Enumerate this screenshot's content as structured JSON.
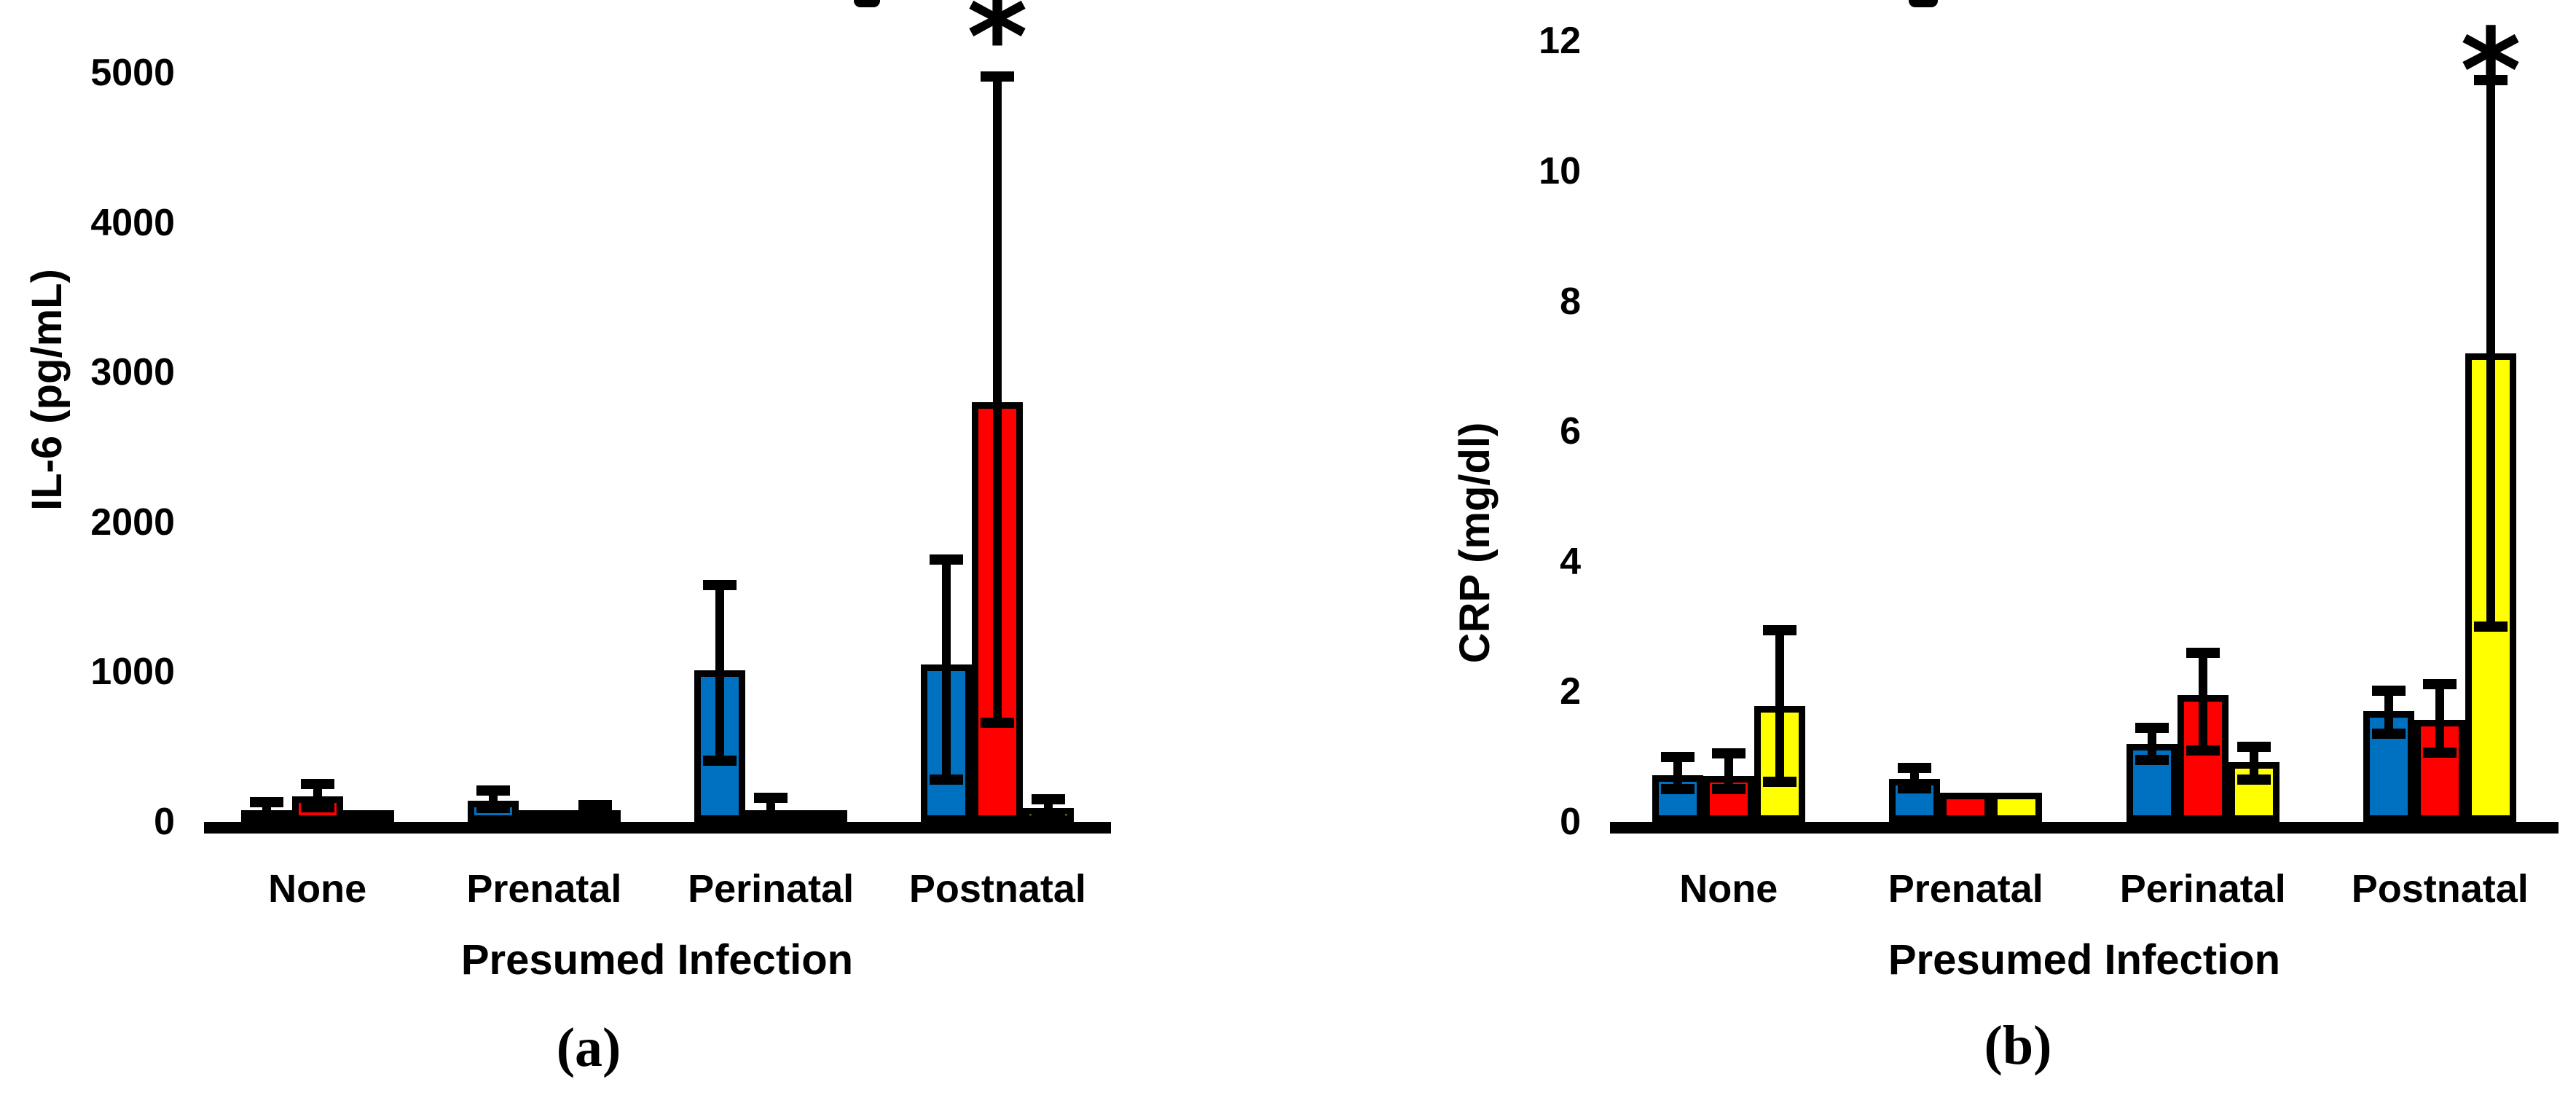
{
  "figure": {
    "panels": [
      {
        "panel_label": "(a)"
      },
      {
        "panel_label": "(b)"
      }
    ]
  },
  "colors": {
    "series_blue": "#0070C0",
    "series_red": "#FF0000",
    "series_yellow": "#FFFF00",
    "outline": "#000000"
  },
  "chart_data": [
    {
      "type": "bar",
      "panel_label": "(a)",
      "xlabel": "Presumed Infection",
      "ylabel": "IL-6 (pg/mL)",
      "categories": [
        "None",
        "Prenatal",
        "Perinatal",
        "Postnatal"
      ],
      "ylim": [
        0,
        5000
      ],
      "yticks": [
        0,
        1000,
        2000,
        3000,
        4000,
        5000
      ],
      "grid": false,
      "legend_position": "none-visible",
      "series": [
        {
          "name": "blue",
          "color": "#0070C0",
          "values": [
            60,
            140,
            1010,
            1050
          ],
          "err_low": [
            20,
            90,
            410,
            280
          ],
          "err_high": [
            130,
            210,
            1580,
            1750
          ]
        },
        {
          "name": "red",
          "color": "#FF0000",
          "values": [
            170,
            30,
            65,
            2800
          ],
          "err_low": [
            95,
            null,
            20,
            660
          ],
          "err_high": [
            255,
            null,
            160,
            4975
          ]
        },
        {
          "name": "yellow",
          "color": "#FFFF00",
          "values": [
            25,
            55,
            25,
            90
          ],
          "err_low": [
            null,
            null,
            null,
            40
          ],
          "err_high": [
            null,
            110,
            null,
            150
          ]
        }
      ],
      "significance": {
        "symbol": "*",
        "category": "Postnatal",
        "series": "red"
      }
    },
    {
      "type": "bar",
      "panel_label": "(b)",
      "xlabel": "Presumed Infection",
      "ylabel": "CRP (mg/dl)",
      "categories": [
        "None",
        "Prenatal",
        "Perinatal",
        "Postnatal"
      ],
      "ylim": [
        0,
        12
      ],
      "yticks": [
        0,
        2,
        4,
        6,
        8,
        10,
        12
      ],
      "grid": false,
      "legend_position": "none-visible",
      "series": [
        {
          "name": "blue",
          "color": "#0070C0",
          "values": [
            0.72,
            0.66,
            1.2,
            1.7
          ],
          "err_low": [
            0.5,
            0.52,
            0.95,
            1.35
          ],
          "err_high": [
            1.0,
            0.83,
            1.45,
            2.02
          ]
        },
        {
          "name": "red",
          "color": "#FF0000",
          "values": [
            0.7,
            0.45,
            1.95,
            1.57
          ],
          "err_low": [
            0.5,
            null,
            1.1,
            1.06
          ],
          "err_high": [
            1.05,
            null,
            2.6,
            2.12
          ]
        },
        {
          "name": "yellow",
          "color": "#FFFF00",
          "values": [
            1.78,
            0.45,
            0.92,
            7.2
          ],
          "err_low": [
            0.62,
            null,
            0.65,
            3.0
          ],
          "err_high": [
            2.95,
            null,
            1.15,
            11.4
          ]
        }
      ],
      "significance": {
        "symbol": "*",
        "category": "Postnatal",
        "series": "yellow"
      }
    }
  ]
}
